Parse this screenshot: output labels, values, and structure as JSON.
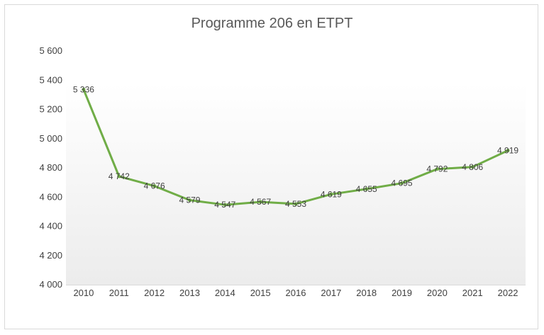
{
  "chart_data": {
    "type": "line",
    "title": "Programme 206 en ETPT",
    "categories": [
      "2010",
      "2011",
      "2012",
      "2013",
      "2014",
      "2015",
      "2016",
      "2017",
      "2018",
      "2019",
      "2020",
      "2021",
      "2022"
    ],
    "series": [
      {
        "values": [
          5336,
          4742,
          4676,
          4579,
          4547,
          4567,
          4553,
          4619,
          4655,
          4695,
          4792,
          4806,
          4919
        ],
        "labels": [
          "5 336",
          "4 742",
          "4 676",
          "4 579",
          "4 547",
          "4 567",
          "4 553",
          "4 619",
          "4 655",
          "4 695",
          "4 792",
          "4 806",
          "4 919"
        ]
      }
    ],
    "yticks": [
      "4 000",
      "4 200",
      "4 400",
      "4 600",
      "4 800",
      "5 000",
      "5 200",
      "5 400",
      "5 600"
    ],
    "ylim": [
      4000,
      5600
    ],
    "grid": false,
    "legend": "none",
    "line_color": "#70ad47"
  }
}
